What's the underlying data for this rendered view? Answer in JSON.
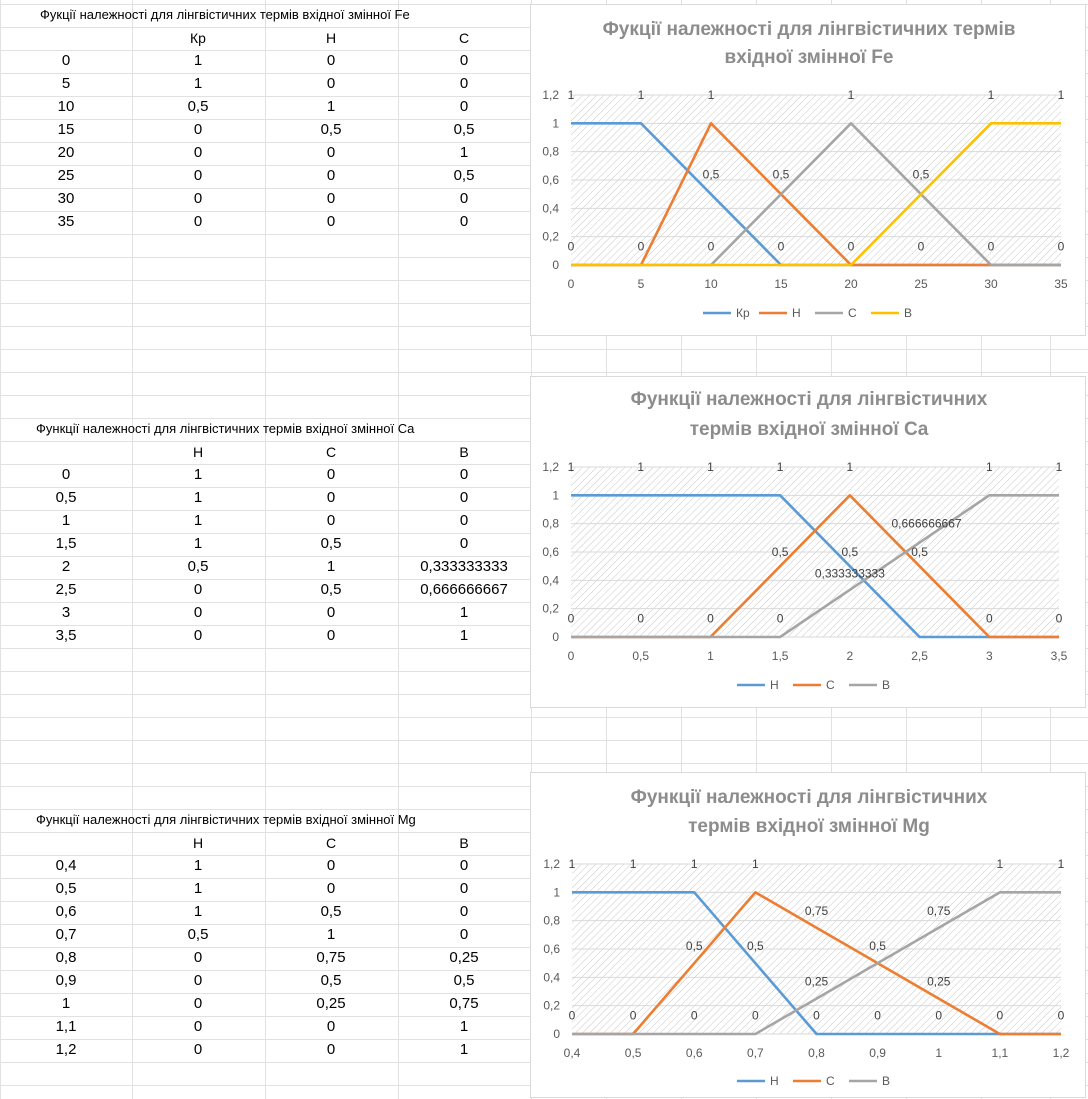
{
  "tables": [
    {
      "title": "Фукції належності для лінгвістичних термів вхідної змінної Fe",
      "headers": [
        "",
        "Кр",
        "Н",
        "С"
      ],
      "rows": [
        [
          "0",
          "1",
          "0",
          "0"
        ],
        [
          "5",
          "1",
          "0",
          "0"
        ],
        [
          "10",
          "0,5",
          "1",
          "0"
        ],
        [
          "15",
          "0",
          "0,5",
          "0,5"
        ],
        [
          "20",
          "0",
          "0",
          "1"
        ],
        [
          "25",
          "0",
          "0",
          "0,5"
        ],
        [
          "30",
          "0",
          "0",
          "0"
        ],
        [
          "35",
          "0",
          "0",
          "0"
        ]
      ]
    },
    {
      "title": "Функції належності для лінгвістичних термів вхідної змінної  Ca",
      "headers": [
        "",
        "Н",
        "С",
        "В"
      ],
      "rows": [
        [
          "0",
          "1",
          "0",
          "0"
        ],
        [
          "0,5",
          "1",
          "0",
          "0"
        ],
        [
          "1",
          "1",
          "0",
          "0"
        ],
        [
          "1,5",
          "1",
          "0,5",
          "0"
        ],
        [
          "2",
          "0,5",
          "1",
          "0,333333333"
        ],
        [
          "2,5",
          "0",
          "0,5",
          "0,666666667"
        ],
        [
          "3",
          "0",
          "0",
          "1"
        ],
        [
          "3,5",
          "0",
          "0",
          "1"
        ]
      ]
    },
    {
      "title": "Функції належності для лінгвістичних термів вхідної змінної Mg",
      "headers": [
        "",
        "Н",
        "С",
        "В"
      ],
      "rows": [
        [
          "0,4",
          "1",
          "0",
          "0"
        ],
        [
          "0,5",
          "1",
          "0",
          "0"
        ],
        [
          "0,6",
          "1",
          "0,5",
          "0"
        ],
        [
          "0,7",
          "0,5",
          "1",
          "0"
        ],
        [
          "0,8",
          "0",
          "0,75",
          "0,25"
        ],
        [
          "0,9",
          "0",
          "0,5",
          "0,5"
        ],
        [
          "1",
          "0",
          "0,25",
          "0,75"
        ],
        [
          "1,1",
          "0",
          "0",
          "1"
        ],
        [
          "1,2",
          "0",
          "0",
          "1"
        ]
      ]
    }
  ],
  "chart_data": [
    {
      "type": "line",
      "title": "Фукції належності для лінгвістичних термів вхідної змінної Fe",
      "x": [
        0,
        5,
        10,
        15,
        20,
        25,
        30,
        35
      ],
      "x_ticks": [
        "0",
        "5",
        "10",
        "15",
        "20",
        "25",
        "30",
        "35"
      ],
      "ylim": [
        0,
        1.2
      ],
      "y_ticks": [
        "0",
        "0,2",
        "0,4",
        "0,6",
        "0,8",
        "1",
        "1,2"
      ],
      "series": [
        {
          "name": "Кр",
          "color": "#5b9bd5",
          "values": [
            1,
            1,
            0.5,
            0,
            0,
            0,
            0,
            0
          ]
        },
        {
          "name": "Н",
          "color": "#ed7d31",
          "values": [
            0,
            0,
            1,
            0.5,
            0,
            0,
            0,
            0
          ]
        },
        {
          "name": "С",
          "color": "#a5a5a5",
          "values": [
            0,
            0,
            0,
            0.5,
            1,
            0.5,
            0,
            0
          ]
        },
        {
          "name": "В",
          "color": "#ffc000",
          "values": [
            0,
            0,
            0,
            0,
            0,
            0.5,
            1,
            1
          ]
        }
      ],
      "data_labels": [
        {
          "x": 0,
          "y": 1.2,
          "text": "1"
        },
        {
          "x": 5,
          "y": 1.2,
          "text": "1"
        },
        {
          "x": 10,
          "y": 1.2,
          "text": "1"
        },
        {
          "x": 20,
          "y": 1.2,
          "text": "1"
        },
        {
          "x": 30,
          "y": 1.2,
          "text": "1"
        },
        {
          "x": 35,
          "y": 1.2,
          "text": "1"
        },
        {
          "x": 10,
          "y": 0.64,
          "text": "0,5"
        },
        {
          "x": 15,
          "y": 0.64,
          "text": "0,5"
        },
        {
          "x": 25,
          "y": 0.64,
          "text": "0,5"
        },
        {
          "x": 0,
          "y": 0.13,
          "text": "0"
        },
        {
          "x": 5,
          "y": 0.13,
          "text": "0"
        },
        {
          "x": 10,
          "y": 0.13,
          "text": "0"
        },
        {
          "x": 15,
          "y": 0.13,
          "text": "0"
        },
        {
          "x": 20,
          "y": 0.13,
          "text": "0"
        },
        {
          "x": 25,
          "y": 0.13,
          "text": "0"
        },
        {
          "x": 30,
          "y": 0.13,
          "text": "0"
        },
        {
          "x": 35,
          "y": 0.13,
          "text": "0"
        }
      ],
      "legend": "bottom"
    },
    {
      "type": "line",
      "title": "Функції належності для лінгвістичних термів вхідної змінної  Ca",
      "x": [
        0,
        0.5,
        1,
        1.5,
        2,
        2.5,
        3,
        3.5
      ],
      "x_ticks": [
        "0",
        "0,5",
        "1",
        "1,5",
        "2",
        "2,5",
        "3",
        "3,5"
      ],
      "ylim": [
        0,
        1.2
      ],
      "y_ticks": [
        "0",
        "0,2",
        "0,4",
        "0,6",
        "0,8",
        "1",
        "1,2"
      ],
      "series": [
        {
          "name": "Н",
          "color": "#5b9bd5",
          "values": [
            1,
            1,
            1,
            1,
            0.5,
            0,
            0,
            0
          ]
        },
        {
          "name": "С",
          "color": "#ed7d31",
          "values": [
            0,
            0,
            0,
            0.5,
            1,
            0.5,
            0,
            0
          ]
        },
        {
          "name": "В",
          "color": "#a5a5a5",
          "values": [
            0,
            0,
            0,
            0,
            0.333333333,
            0.666666667,
            1,
            1
          ]
        }
      ],
      "data_labels": [
        {
          "x": 0,
          "y": 1.2,
          "text": "1"
        },
        {
          "x": 0.5,
          "y": 1.2,
          "text": "1"
        },
        {
          "x": 1,
          "y": 1.2,
          "text": "1"
        },
        {
          "x": 1.5,
          "y": 1.2,
          "text": "1"
        },
        {
          "x": 2,
          "y": 1.2,
          "text": "1"
        },
        {
          "x": 3,
          "y": 1.2,
          "text": "1"
        },
        {
          "x": 3.5,
          "y": 1.2,
          "text": "1"
        },
        {
          "x": 2.55,
          "y": 0.8,
          "text": "0,666666667"
        },
        {
          "x": 1.5,
          "y": 0.6,
          "text": "0,5"
        },
        {
          "x": 2,
          "y": 0.6,
          "text": "0,5"
        },
        {
          "x": 2.5,
          "y": 0.6,
          "text": "0,5"
        },
        {
          "x": 2,
          "y": 0.45,
          "text": "0,333333333"
        },
        {
          "x": 0,
          "y": 0.13,
          "text": "0"
        },
        {
          "x": 0.5,
          "y": 0.13,
          "text": "0"
        },
        {
          "x": 1,
          "y": 0.13,
          "text": "0"
        },
        {
          "x": 1.5,
          "y": 0.13,
          "text": "0"
        },
        {
          "x": 3,
          "y": 0.13,
          "text": "0"
        },
        {
          "x": 3.5,
          "y": 0.13,
          "text": "0"
        }
      ],
      "legend": "bottom"
    },
    {
      "type": "line",
      "title": "Функції належності для лінгвістичних термів вхідної змінної Mg",
      "x": [
        0.4,
        0.5,
        0.6,
        0.7,
        0.8,
        0.9,
        1,
        1.1,
        1.2
      ],
      "x_ticks": [
        "0,4",
        "0,5",
        "0,6",
        "0,7",
        "0,8",
        "0,9",
        "1",
        "1,1",
        "1,2"
      ],
      "ylim": [
        0,
        1.2
      ],
      "y_ticks": [
        "0",
        "0,2",
        "0,4",
        "0,6",
        "0,8",
        "1",
        "1,2"
      ],
      "series": [
        {
          "name": "Н",
          "color": "#5b9bd5",
          "values": [
            1,
            1,
            1,
            0.5,
            0,
            0,
            0,
            0,
            0
          ]
        },
        {
          "name": "С",
          "color": "#ed7d31",
          "values": [
            0,
            0,
            0.5,
            1,
            0.75,
            0.5,
            0.25,
            0,
            0
          ]
        },
        {
          "name": "В",
          "color": "#a5a5a5",
          "values": [
            0,
            0,
            0,
            0,
            0.25,
            0.5,
            0.75,
            1,
            1
          ]
        }
      ],
      "data_labels": [
        {
          "x": 0.4,
          "y": 1.2,
          "text": "1"
        },
        {
          "x": 0.5,
          "y": 1.2,
          "text": "1"
        },
        {
          "x": 0.6,
          "y": 1.2,
          "text": "1"
        },
        {
          "x": 0.7,
          "y": 1.2,
          "text": "1"
        },
        {
          "x": 1.1,
          "y": 1.2,
          "text": "1"
        },
        {
          "x": 1.2,
          "y": 1.2,
          "text": "1"
        },
        {
          "x": 0.8,
          "y": 0.87,
          "text": "0,75"
        },
        {
          "x": 1,
          "y": 0.87,
          "text": "0,75"
        },
        {
          "x": 0.6,
          "y": 0.62,
          "text": "0,5"
        },
        {
          "x": 0.7,
          "y": 0.62,
          "text": "0,5"
        },
        {
          "x": 0.9,
          "y": 0.62,
          "text": "0,5"
        },
        {
          "x": 0.8,
          "y": 0.37,
          "text": "0,25"
        },
        {
          "x": 1,
          "y": 0.37,
          "text": "0,25"
        },
        {
          "x": 0.4,
          "y": 0.13,
          "text": "0"
        },
        {
          "x": 0.5,
          "y": 0.13,
          "text": "0"
        },
        {
          "x": 0.6,
          "y": 0.13,
          "text": "0"
        },
        {
          "x": 0.7,
          "y": 0.13,
          "text": "0"
        },
        {
          "x": 0.8,
          "y": 0.13,
          "text": "0"
        },
        {
          "x": 0.9,
          "y": 0.13,
          "text": "0"
        },
        {
          "x": 1,
          "y": 0.13,
          "text": "0"
        },
        {
          "x": 1.1,
          "y": 0.13,
          "text": "0"
        },
        {
          "x": 1.2,
          "y": 0.13,
          "text": "0"
        }
      ],
      "legend": "bottom"
    }
  ]
}
